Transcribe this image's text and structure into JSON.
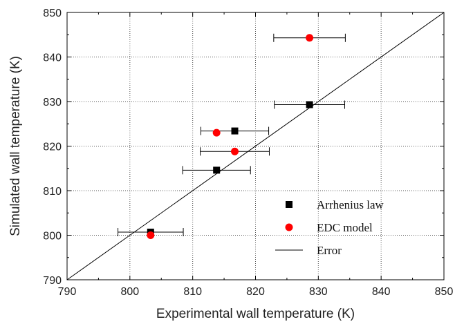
{
  "chart_data": {
    "type": "scatter",
    "xlabel": "Experimental wall temperature (K)",
    "ylabel": "Simulated wall temperature (K)",
    "xlim": [
      790,
      850
    ],
    "ylim": [
      790,
      850
    ],
    "x_ticks": [
      "790",
      "800",
      "810",
      "820",
      "830",
      "840",
      "850"
    ],
    "y_ticks": [
      "790",
      "800",
      "810",
      "820",
      "830",
      "840",
      "850"
    ],
    "grid": "dotted",
    "legend_placement": "bottom-right",
    "reference_line": {
      "from": [
        790,
        790
      ],
      "to": [
        850,
        850
      ]
    },
    "series": [
      {
        "name": "Arrhenius law",
        "marker": "square",
        "color": "#000000",
        "points": [
          {
            "x": 803.3,
            "y": 800.7,
            "xerr": 5.2
          },
          {
            "x": 813.8,
            "y": 814.6,
            "xerr": 5.4
          },
          {
            "x": 816.7,
            "y": 823.4,
            "xerr": 5.4
          },
          {
            "x": 828.6,
            "y": 829.3,
            "xerr": 5.6
          }
        ]
      },
      {
        "name": "EDC model",
        "marker": "circle",
        "color": "#ff0000",
        "points": [
          {
            "x": 803.3,
            "y": 800.0
          },
          {
            "x": 813.8,
            "y": 823.0
          },
          {
            "x": 816.7,
            "y": 818.8,
            "xerr": 5.5
          },
          {
            "x": 828.6,
            "y": 844.3,
            "xerr": 5.7
          }
        ]
      }
    ],
    "legend": [
      {
        "label": "Arrhenius law",
        "symbol": "square",
        "color": "#000000"
      },
      {
        "label": "EDC model",
        "symbol": "circle",
        "color": "#ff0000"
      },
      {
        "label": "Error",
        "symbol": "line",
        "color": "#000000"
      }
    ]
  }
}
